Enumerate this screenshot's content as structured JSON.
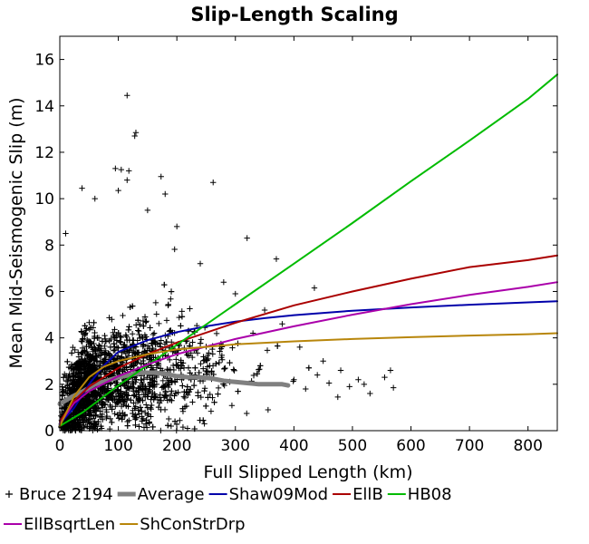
{
  "chart_data": {
    "type": "scatter",
    "title": "Slip-Length Scaling",
    "xlabel": "Full Slipped Length (km)",
    "ylabel": "Mean Mid-Seismogenic Slip (m)",
    "xlim": [
      0,
      850
    ],
    "ylim": [
      0,
      17
    ],
    "x_ticks": [
      0,
      100,
      200,
      300,
      400,
      500,
      600,
      700,
      800
    ],
    "y_ticks": [
      0,
      2,
      4,
      6,
      8,
      10,
      12,
      14,
      16
    ],
    "grid": false,
    "legend_position": "bottom",
    "scatter_series": {
      "name": "Bruce 2194",
      "color": "#000000",
      "marker": "plus",
      "outliers": [
        [
          115,
          14.45
        ],
        [
          130,
          12.85
        ],
        [
          128,
          12.7
        ],
        [
          95,
          11.3
        ],
        [
          105,
          11.25
        ],
        [
          118,
          11.2
        ],
        [
          173,
          10.95
        ],
        [
          262,
          10.7
        ],
        [
          38,
          10.45
        ],
        [
          115,
          10.8
        ],
        [
          100,
          10.35
        ],
        [
          180,
          10.2
        ],
        [
          60,
          10.0
        ],
        [
          320,
          8.3
        ],
        [
          370,
          7.4
        ],
        [
          435,
          6.15
        ],
        [
          565,
          2.6
        ],
        [
          570,
          1.85
        ],
        [
          555,
          2.3
        ],
        [
          495,
          1.9
        ],
        [
          460,
          2.05
        ],
        [
          420,
          1.8
        ],
        [
          400,
          2.2
        ],
        [
          520,
          2.0
        ],
        [
          530,
          1.6
        ],
        [
          475,
          1.45
        ],
        [
          440,
          2.4
        ],
        [
          10,
          8.5
        ],
        [
          150,
          9.5
        ],
        [
          200,
          8.8
        ],
        [
          240,
          7.2
        ],
        [
          280,
          6.4
        ],
        [
          300,
          5.9
        ],
        [
          350,
          5.2
        ],
        [
          380,
          4.6
        ],
        [
          410,
          3.6
        ],
        [
          480,
          2.6
        ],
        [
          510,
          2.2
        ],
        [
          450,
          3.0
        ],
        [
          330,
          4.2
        ]
      ]
    },
    "series": [
      {
        "name": "Average",
        "color": "#808080",
        "x": [
          0,
          20,
          40,
          60,
          80,
          100,
          120,
          140,
          160,
          180,
          200,
          220,
          240,
          260,
          280,
          300,
          320,
          340,
          360,
          380,
          390
        ],
        "y": [
          1.15,
          1.45,
          1.7,
          2.0,
          2.15,
          2.3,
          2.4,
          2.5,
          2.5,
          2.45,
          2.35,
          2.3,
          2.3,
          2.25,
          2.15,
          2.1,
          2.05,
          2.0,
          2.0,
          2.0,
          1.95
        ]
      },
      {
        "name": "Shaw09Mod",
        "color": "#0000aa",
        "x": [
          0,
          25,
          50,
          75,
          100,
          150,
          200,
          250,
          300,
          350,
          400,
          500,
          600,
          700,
          800,
          850
        ],
        "y": [
          0.3,
          1.0,
          2.0,
          2.8,
          3.4,
          3.9,
          4.25,
          4.5,
          4.7,
          4.85,
          4.98,
          5.17,
          5.31,
          5.43,
          5.53,
          5.58
        ]
      },
      {
        "name": "EllB",
        "color": "#aa0000",
        "x": [
          0,
          25,
          50,
          100,
          150,
          200,
          300,
          400,
          500,
          600,
          700,
          800,
          850
        ],
        "y": [
          0.4,
          1.3,
          1.9,
          2.7,
          3.3,
          3.8,
          4.65,
          5.4,
          6.0,
          6.55,
          7.05,
          7.35,
          7.55
        ]
      },
      {
        "name": "HB08",
        "color": "#00bb00",
        "x": [
          0,
          40,
          100,
          200,
          300,
          400,
          500,
          600,
          700,
          800,
          850
        ],
        "y": [
          0.2,
          0.8,
          1.95,
          3.7,
          5.45,
          7.2,
          8.95,
          10.75,
          12.5,
          14.3,
          15.35
        ]
      },
      {
        "name": "EllBsqrtLen",
        "color": "#aa00aa",
        "x": [
          0,
          25,
          50,
          100,
          150,
          200,
          300,
          400,
          500,
          600,
          700,
          800,
          850
        ],
        "y": [
          0.3,
          1.2,
          1.7,
          2.35,
          2.85,
          3.3,
          3.95,
          4.5,
          5.0,
          5.45,
          5.85,
          6.2,
          6.4
        ]
      },
      {
        "name": "ShConStrDrp",
        "color": "#b8860b",
        "x": [
          0,
          25,
          50,
          75,
          100,
          150,
          200,
          300,
          400,
          500,
          600,
          700,
          800,
          850
        ],
        "y": [
          0.2,
          1.5,
          2.3,
          2.75,
          3.0,
          3.3,
          3.5,
          3.72,
          3.85,
          3.95,
          4.03,
          4.1,
          4.16,
          4.2
        ]
      }
    ]
  }
}
